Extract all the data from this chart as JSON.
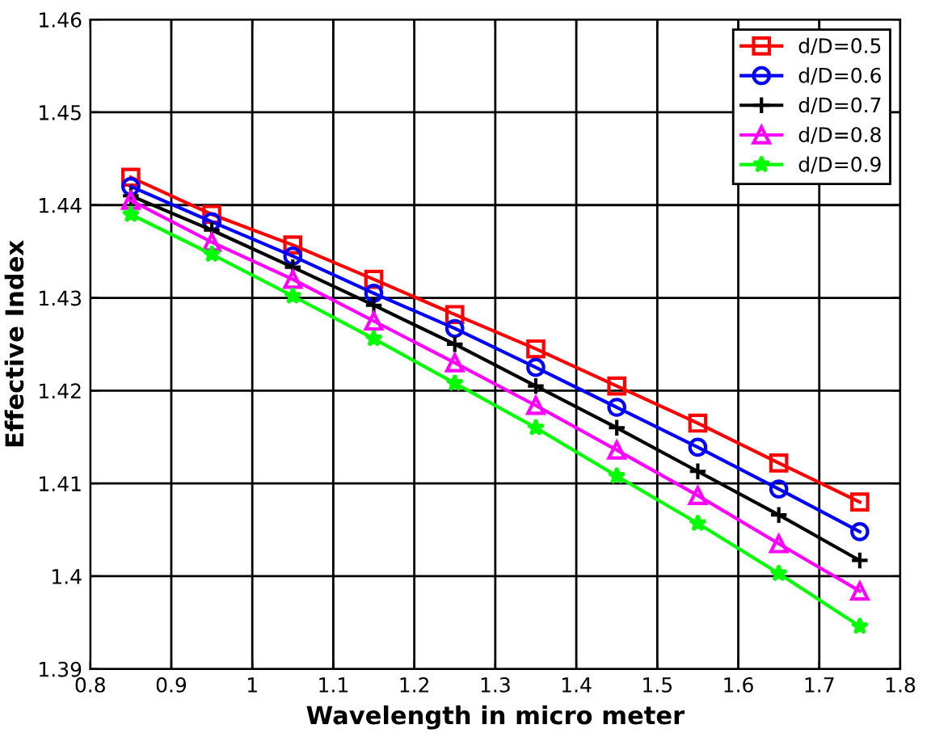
{
  "chart_data": {
    "type": "line",
    "xlabel": "Wavelength in micro meter",
    "ylabel": "Effective Index",
    "x": [
      0.85,
      0.95,
      1.05,
      1.15,
      1.25,
      1.35,
      1.45,
      1.55,
      1.65,
      1.75
    ],
    "series": [
      {
        "name": "d/D=0.5",
        "color": "#ff0000",
        "marker": "square",
        "values": [
          1.443,
          1.439,
          1.4357,
          1.432,
          1.4282,
          1.4245,
          1.4205,
          1.4165,
          1.4122,
          1.408
        ]
      },
      {
        "name": "d/D=0.6",
        "color": "#0000ff",
        "marker": "circle",
        "values": [
          1.442,
          1.4382,
          1.4345,
          1.4305,
          1.4267,
          1.4225,
          1.4182,
          1.4139,
          1.4094,
          1.4048
        ]
      },
      {
        "name": "d/D=0.7",
        "color": "#000000",
        "marker": "cross",
        "values": [
          1.441,
          1.4373,
          1.4333,
          1.4292,
          1.425,
          1.4205,
          1.416,
          1.4113,
          1.4066,
          1.4017
        ]
      },
      {
        "name": "d/D=0.8",
        "color": "#ff00ff",
        "marker": "triangle",
        "values": [
          1.4405,
          1.436,
          1.432,
          1.4275,
          1.423,
          1.4184,
          1.4136,
          1.4087,
          1.4035,
          1.3984
        ]
      },
      {
        "name": "d/D=0.9",
        "color": "#00ff00",
        "marker": "star",
        "values": [
          1.439,
          1.4347,
          1.4302,
          1.4256,
          1.4208,
          1.416,
          1.4108,
          1.4057,
          1.4003,
          1.3946
        ]
      }
    ],
    "xlim": [
      0.8,
      1.8
    ],
    "xticks": [
      0.8,
      0.9,
      1,
      1.1,
      1.2,
      1.3,
      1.4,
      1.5,
      1.6,
      1.7,
      1.8
    ],
    "ylim": [
      1.39,
      1.46
    ],
    "yticks": [
      1.39,
      1.4,
      1.41,
      1.42,
      1.43,
      1.44,
      1.45,
      1.46
    ],
    "grid": true,
    "legend": "top right",
    "line_style": "solid"
  }
}
